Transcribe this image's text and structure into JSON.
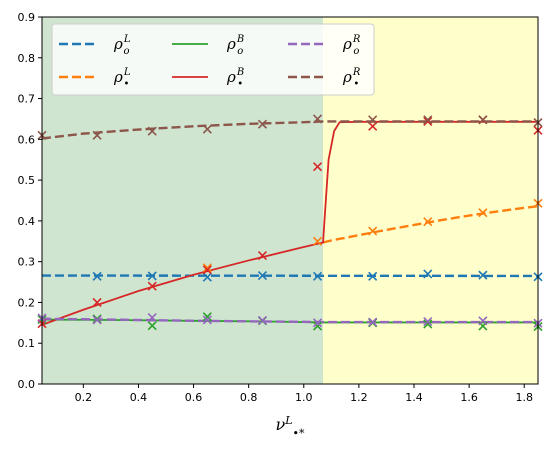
{
  "chart_data": {
    "type": "line",
    "title": "",
    "xlabel": "ν",
    "xlabel_sub": "•*",
    "xlabel_sup": "L",
    "ylabel": "",
    "xlim": [
      0.05,
      1.85
    ],
    "ylim": [
      0,
      0.9
    ],
    "xticks": [
      "0.2",
      "0.4",
      "0.6",
      "0.8",
      "1.0",
      "1.2",
      "1.4",
      "1.6",
      "1.8"
    ],
    "xtick_values": [
      0.2,
      0.4,
      0.6,
      0.8,
      1.0,
      1.2,
      1.4,
      1.6,
      1.8
    ],
    "yticks": [
      "0.0",
      "0.1",
      "0.2",
      "0.3",
      "0.4",
      "0.5",
      "0.6",
      "0.7",
      "0.8",
      "0.9"
    ],
    "ytick_values": [
      0.0,
      0.1,
      0.2,
      0.3,
      0.4,
      0.5,
      0.6,
      0.7,
      0.8,
      0.9
    ],
    "grid": false,
    "legend_placement": "top-left",
    "regions": [
      {
        "x_from": 0.05,
        "x_to": 1.07,
        "color": "#cfe5cf"
      },
      {
        "x_from": 1.07,
        "x_to": 1.85,
        "color": "#ffffcc"
      }
    ],
    "series": [
      {
        "base": "ρ",
        "sub": "o",
        "sup": "L",
        "color": "#1f77b4",
        "dashed": true,
        "x": [
          0.05,
          1.85
        ],
        "y": [
          0.266,
          0.265
        ],
        "marker_x": [
          0.25,
          0.45,
          0.65,
          0.85,
          1.05,
          1.25,
          1.45,
          1.65,
          1.85
        ],
        "marker_y": [
          0.264,
          0.265,
          0.262,
          0.266,
          0.264,
          0.264,
          0.27,
          0.267,
          0.263
        ]
      },
      {
        "base": "ρ",
        "sub": "•",
        "sup": "L",
        "color": "#ff7f0e",
        "dashed": true,
        "x": [
          1.07,
          1.1,
          1.2,
          1.3,
          1.4,
          1.5,
          1.6,
          1.7,
          1.8,
          1.85
        ],
        "y": [
          0.347,
          0.352,
          0.365,
          0.378,
          0.39,
          0.402,
          0.413,
          0.423,
          0.432,
          0.436
        ],
        "marker_x": [
          0.65,
          1.05,
          1.25,
          1.45,
          1.65,
          1.85
        ],
        "marker_y": [
          0.285,
          0.35,
          0.375,
          0.398,
          0.42,
          0.443
        ]
      },
      {
        "base": "ρ",
        "sub": "o",
        "sup": "B",
        "color": "#2ca02c",
        "dashed": false,
        "x": [
          0.05,
          0.3,
          0.6,
          0.9,
          1.07,
          1.3,
          1.6,
          1.85
        ],
        "y": [
          0.158,
          0.157,
          0.155,
          0.153,
          0.151,
          0.151,
          0.151,
          0.151
        ],
        "marker_x": [
          0.05,
          0.25,
          0.45,
          0.65,
          0.85,
          1.05,
          1.25,
          1.45,
          1.65,
          1.85
        ],
        "marker_y": [
          0.158,
          0.16,
          0.143,
          0.165,
          0.155,
          0.142,
          0.15,
          0.147,
          0.142,
          0.141
        ]
      },
      {
        "base": "ρ",
        "sub": "•",
        "sup": "B",
        "color": "#d62728",
        "dashed": false,
        "x": [
          0.05,
          0.2,
          0.4,
          0.6,
          0.8,
          1.0,
          1.07,
          1.075,
          1.09,
          1.11,
          1.13,
          1.2,
          1.5,
          1.85
        ],
        "y": [
          0.145,
          0.182,
          0.228,
          0.268,
          0.303,
          0.336,
          0.347,
          0.4,
          0.55,
          0.62,
          0.642,
          0.643,
          0.643,
          0.643
        ],
        "marker_x": [
          0.05,
          0.25,
          0.45,
          0.65,
          0.85,
          1.05,
          1.25,
          1.45,
          1.65,
          1.85
        ],
        "marker_y": [
          0.148,
          0.2,
          0.24,
          0.28,
          0.315,
          0.533,
          0.632,
          0.644,
          0.648,
          0.622
        ]
      },
      {
        "base": "ρ",
        "sub": "o",
        "sup": "R",
        "color": "#9467bd",
        "dashed": true,
        "x": [
          0.05,
          0.3,
          0.6,
          0.9,
          1.07,
          1.3,
          1.6,
          1.85
        ],
        "y": [
          0.16,
          0.158,
          0.155,
          0.153,
          0.152,
          0.152,
          0.152,
          0.152
        ],
        "marker_x": [
          0.05,
          0.25,
          0.45,
          0.65,
          0.85,
          1.05,
          1.25,
          1.45,
          1.65,
          1.85
        ],
        "marker_y": [
          0.162,
          0.157,
          0.163,
          0.157,
          0.156,
          0.15,
          0.152,
          0.153,
          0.155,
          0.149
        ]
      },
      {
        "base": "ρ",
        "sub": "•",
        "sup": "R",
        "color": "#8c564b",
        "dashed": true,
        "x": [
          0.05,
          0.2,
          0.4,
          0.6,
          0.8,
          1.0,
          1.07,
          1.2,
          1.5,
          1.85
        ],
        "y": [
          0.602,
          0.614,
          0.624,
          0.632,
          0.638,
          0.642,
          0.644,
          0.644,
          0.644,
          0.644
        ],
        "marker_x": [
          0.05,
          0.25,
          0.45,
          0.65,
          0.85,
          1.05,
          1.25,
          1.45,
          1.65,
          1.85
        ],
        "marker_y": [
          0.61,
          0.61,
          0.62,
          0.625,
          0.637,
          0.65,
          0.648,
          0.648,
          0.648,
          0.641
        ]
      }
    ]
  }
}
